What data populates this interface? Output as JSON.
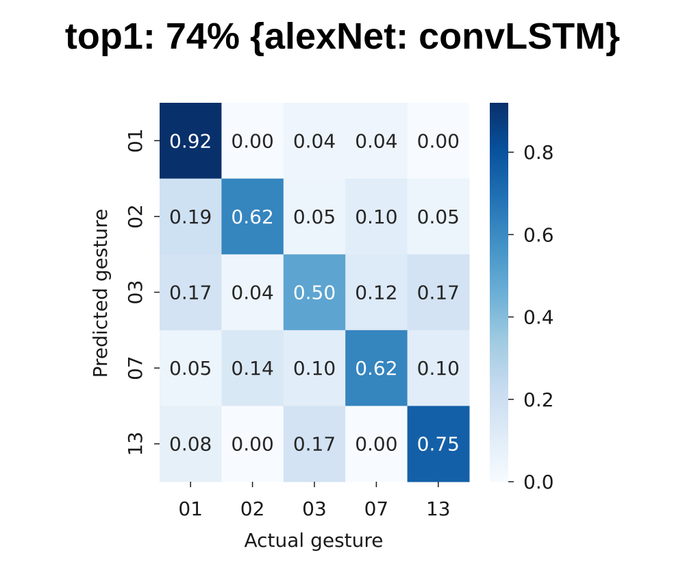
{
  "chart_data": {
    "type": "heatmap",
    "title": "top1: 74% {alexNet: convLSTM}",
    "xlabel": "Actual gesture",
    "ylabel": "Predicted gesture",
    "x_categories": [
      "01",
      "02",
      "03",
      "07",
      "13"
    ],
    "y_categories": [
      "01",
      "02",
      "03",
      "07",
      "13"
    ],
    "values": [
      [
        0.92,
        0.0,
        0.04,
        0.04,
        0.0
      ],
      [
        0.19,
        0.62,
        0.05,
        0.1,
        0.05
      ],
      [
        0.17,
        0.04,
        0.5,
        0.12,
        0.17
      ],
      [
        0.05,
        0.14,
        0.1,
        0.62,
        0.1
      ],
      [
        0.08,
        0.0,
        0.17,
        0.0,
        0.75
      ]
    ],
    "cell_labels": [
      [
        "0.92",
        "0.00",
        "0.04",
        "0.04",
        "0.00"
      ],
      [
        "0.19",
        "0.62",
        "0.05",
        "0.10",
        "0.05"
      ],
      [
        "0.17",
        "0.04",
        "0.50",
        "0.12",
        "0.17"
      ],
      [
        "0.05",
        "0.14",
        "0.10",
        "0.62",
        "0.10"
      ],
      [
        "0.08",
        "0.00",
        "0.17",
        "0.00",
        "0.75"
      ]
    ],
    "colorbar": {
      "colormap": "Blues",
      "range": [
        0.0,
        0.92
      ],
      "ticks": [
        0.0,
        0.2,
        0.4,
        0.6,
        0.8
      ],
      "tick_labels": [
        "0.0",
        "0.2",
        "0.4",
        "0.6",
        "0.8"
      ]
    },
    "grid": false,
    "legend": "colorbar-right"
  }
}
